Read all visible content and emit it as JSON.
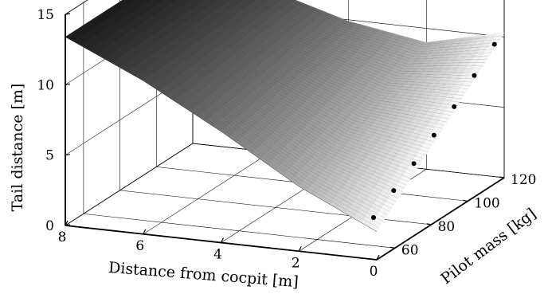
{
  "chart_data": {
    "type": "surface",
    "title": "",
    "x_axis": {
      "label": "Distance from cocpit [m]",
      "ticks": [
        0,
        2,
        4,
        6,
        8
      ],
      "range": [
        0,
        8
      ]
    },
    "y_axis": {
      "label": "Pilot mass [kg]",
      "ticks": [
        60,
        80,
        100,
        120
      ],
      "range": [
        50,
        120
      ]
    },
    "z_axis": {
      "label": "Tail distance [m]",
      "ticks": [
        0,
        5,
        10,
        15
      ],
      "range": [
        0,
        15
      ]
    },
    "grid": true,
    "surface_samples": {
      "x": [
        0,
        2,
        4,
        6,
        8
      ],
      "series": [
        {
          "y": 50,
          "z": [
            2.0,
            4.6,
            7.9,
            10.9,
            13.4
          ]
        },
        {
          "y": 120,
          "z": [
            10.3,
            9.0,
            9.9,
            11.5,
            13.4
          ]
        }
      ]
    },
    "markers": {
      "color": "#000000",
      "points": [
        {
          "x": 0.55,
          "y": 60,
          "z": 2.0
        },
        {
          "x": 0.5,
          "y": 70,
          "z": 3.1
        },
        {
          "x": 0.45,
          "y": 80,
          "z": 4.2
        },
        {
          "x": 0.4,
          "y": 90,
          "z": 5.4
        },
        {
          "x": 0.35,
          "y": 100,
          "z": 6.6
        },
        {
          "x": 0.3,
          "y": 110,
          "z": 8.0
        },
        {
          "x": 0.25,
          "y": 120,
          "z": 9.4
        }
      ]
    },
    "colors": {
      "surface_light": "#ffffff",
      "surface_dark": "#1a1a1a",
      "mesh_line": "#2a2a2a",
      "grid": "#000000"
    }
  }
}
